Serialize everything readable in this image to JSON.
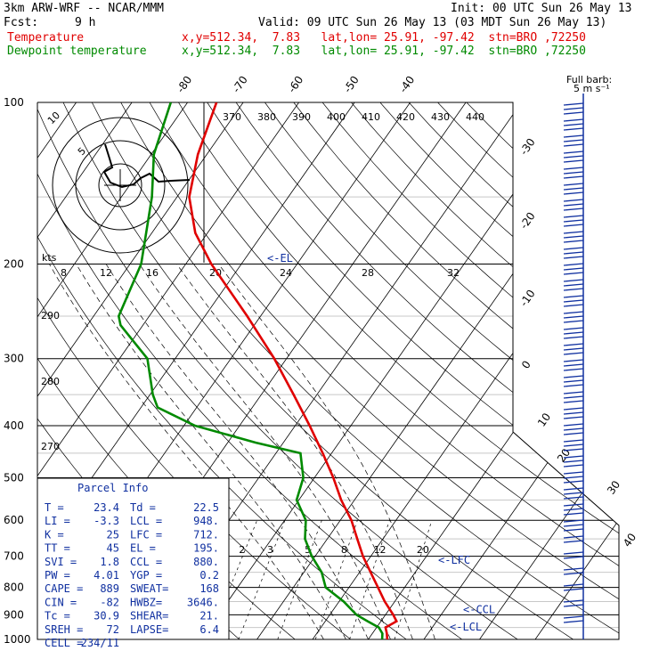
{
  "header": {
    "model": "3km ARW-WRF -- NCAR/MMM",
    "init": "Init: 00 UTC Sun 26 May 13",
    "fcst_label": "Fcst:",
    "fcst_value": "9 h",
    "valid": "Valid: 09 UTC Sun 26 May 13 (03 MDT Sun 26 May 13)",
    "series": [
      {
        "name": "Temperature",
        "info": "x,y=512.34,  7.83   lat,lon= 25.91, -97.42  stn=BRO ,72250",
        "color": "#e00000"
      },
      {
        "name": "Dewpoint temperature",
        "info": "x,y=512.34,  7.83   lat,lon= 25.91, -97.42  stn=BRO ,72250",
        "color": "#008a00"
      }
    ]
  },
  "chart_data": {
    "type": "line",
    "subtype": "skew-T log-p sounding",
    "y_scale": "log",
    "ylim": [
      1000,
      100
    ],
    "pressure_ticks": [
      100,
      200,
      300,
      400,
      500,
      600,
      700,
      800,
      900,
      1000
    ],
    "temperature_ticks": [
      -80,
      -70,
      -60,
      -50,
      -40,
      -30,
      -20,
      -10,
      0,
      10,
      20,
      30,
      40
    ],
    "theta_labels": [
      370,
      380,
      390,
      400,
      410,
      420,
      430,
      440
    ],
    "theta_side_labels": [
      290,
      280,
      270
    ],
    "mixing_ratio_labels": [
      2,
      3,
      5,
      8,
      12,
      20
    ],
    "series": [
      {
        "name": "Temperature",
        "color": "#e00000",
        "points": [
          {
            "p": 1000,
            "t": 23.4
          },
          {
            "p": 975,
            "t": 22.6
          },
          {
            "p": 950,
            "t": 21.6
          },
          {
            "p": 925,
            "t": 22.8
          },
          {
            "p": 900,
            "t": 21.4
          },
          {
            "p": 850,
            "t": 18.2
          },
          {
            "p": 800,
            "t": 15.2
          },
          {
            "p": 750,
            "t": 12.0
          },
          {
            "p": 700,
            "t": 8.6
          },
          {
            "p": 650,
            "t": 5.4
          },
          {
            "p": 600,
            "t": 2.0
          },
          {
            "p": 550,
            "t": -2.4
          },
          {
            "p": 500,
            "t": -6.6
          },
          {
            "p": 450,
            "t": -11.6
          },
          {
            "p": 400,
            "t": -17.4
          },
          {
            "p": 350,
            "t": -24.2
          },
          {
            "p": 300,
            "t": -32.2
          },
          {
            "p": 250,
            "t": -42.4
          },
          {
            "p": 200,
            "t": -55.4
          },
          {
            "p": 175,
            "t": -62.2
          },
          {
            "p": 150,
            "t": -67.8
          },
          {
            "p": 125,
            "t": -71.6
          },
          {
            "p": 100,
            "t": -74.8
          }
        ]
      },
      {
        "name": "Dewpoint temperature",
        "color": "#008a00",
        "points": [
          {
            "p": 1000,
            "t": 22.5
          },
          {
            "p": 975,
            "t": 21.8
          },
          {
            "p": 950,
            "t": 20.4
          },
          {
            "p": 925,
            "t": 17.6
          },
          {
            "p": 900,
            "t": 14.8
          },
          {
            "p": 850,
            "t": 10.8
          },
          {
            "p": 800,
            "t": 5.8
          },
          {
            "p": 750,
            "t": 3.2
          },
          {
            "p": 700,
            "t": -0.6
          },
          {
            "p": 650,
            "t": -4.0
          },
          {
            "p": 600,
            "t": -6.2
          },
          {
            "p": 550,
            "t": -10.4
          },
          {
            "p": 500,
            "t": -12.0
          },
          {
            "p": 450,
            "t": -15.6
          },
          {
            "p": 430,
            "t": -25.0
          },
          {
            "p": 400,
            "t": -38.0
          },
          {
            "p": 370,
            "t": -47.0
          },
          {
            "p": 350,
            "t": -49.5
          },
          {
            "p": 300,
            "t": -55.0
          },
          {
            "p": 260,
            "t": -64.0
          },
          {
            "p": 250,
            "t": -65.5
          },
          {
            "p": 200,
            "t": -68.0
          },
          {
            "p": 150,
            "t": -74.5
          },
          {
            "p": 125,
            "t": -79.5
          },
          {
            "p": 100,
            "t": -83.0
          }
        ]
      }
    ],
    "levels": [
      {
        "label": "<-EL",
        "p": 195
      },
      {
        "label": "<-LFC",
        "p": 712
      },
      {
        "label": "<-CCL",
        "p": 880
      },
      {
        "label": "<-LCL",
        "p": 948
      }
    ],
    "hodograph": {
      "units_label": "kts",
      "ring_labels": [
        "5",
        "10"
      ],
      "speed_ticks": [
        8,
        12,
        16,
        20,
        24,
        28,
        32
      ]
    },
    "wind_barbs_label": "Full barb:",
    "wind_barbs_unit": "5 m s⁻¹",
    "parcel_info": {
      "title": "Parcel Info",
      "rows": [
        [
          "T  =",
          "23.4",
          "Td =",
          "22.5"
        ],
        [
          "LI =",
          "-3.3",
          "LCL =",
          "948."
        ],
        [
          "K  =",
          "25",
          "LFC =",
          "712."
        ],
        [
          "TT =",
          "45",
          "EL =",
          "195."
        ],
        [
          "SVI =",
          "1.8",
          "CCL =",
          "880."
        ],
        [
          "PW =",
          "4.01",
          "YGP =",
          "0.2"
        ],
        [
          "CAPE =",
          "889",
          "SWEAT=",
          "168"
        ],
        [
          "CIN =",
          "-82",
          "HWBZ=",
          "3646."
        ],
        [
          "Tc =",
          "30.9",
          "SHEAR=",
          "21."
        ],
        [
          "SREH =",
          "72",
          "LAPSE=",
          "6.4"
        ],
        [
          "CELL =",
          "234/11",
          "",
          ""
        ]
      ]
    }
  }
}
